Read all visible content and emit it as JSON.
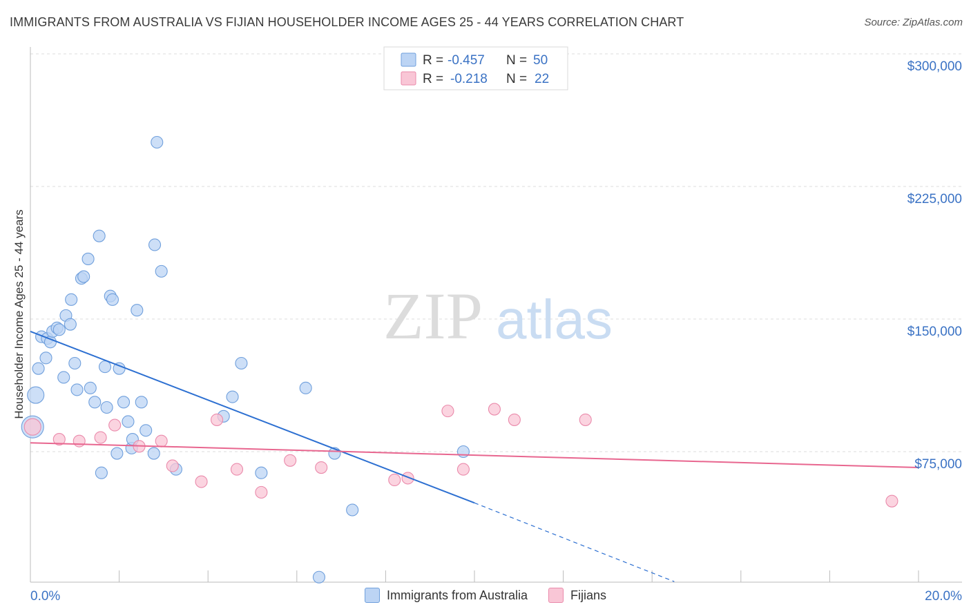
{
  "header": {
    "title": "IMMIGRANTS FROM AUSTRALIA VS FIJIAN HOUSEHOLDER INCOME AGES 25 - 44 YEARS CORRELATION CHART",
    "source": "Source: ZipAtlas.com"
  },
  "watermark": {
    "zip": "ZIP",
    "atlas": "atlas"
  },
  "colors": {
    "blue_fill": "#bcd4f4",
    "blue_stroke": "#6f9fdc",
    "blue_line": "#2c6fd1",
    "pink_fill": "#f9c6d6",
    "pink_stroke": "#ea8aab",
    "pink_line": "#e8668f",
    "axis_text": "#3a72c4"
  },
  "legend": {
    "rows": [
      {
        "r_label": "R =",
        "r_value": "-0.457",
        "n_label": "N =",
        "n_value": "50"
      },
      {
        "r_label": "R =",
        "r_value": "-0.218",
        "n_label": "N =",
        "n_value": "22"
      }
    ]
  },
  "bottom_legend": {
    "blue": "Immigrants from Australia",
    "pink": "Fijians"
  },
  "chart_data": {
    "type": "scatter",
    "title": "IMMIGRANTS FROM AUSTRALIA VS FIJIAN HOUSEHOLDER INCOME AGES 25 - 44 YEARS CORRELATION CHART",
    "xlabel": "",
    "ylabel": "Householder Income Ages 25 - 44 years",
    "xlim": [
      0,
      20
    ],
    "ylim": [
      0,
      310000
    ],
    "x_tick_labels": {
      "min": "0.0%",
      "max": "20.0%"
    },
    "y_ticks": [
      {
        "value": 75000,
        "label": "$75,000"
      },
      {
        "value": 150000,
        "label": "$150,000"
      },
      {
        "value": 225000,
        "label": "$225,000"
      },
      {
        "value": 300000,
        "label": "$300,000"
      }
    ],
    "series": [
      {
        "name": "Immigrants from Australia",
        "color": "blue",
        "r": -0.457,
        "n": 50,
        "trend": {
          "x0": 0.0,
          "y0": 143000,
          "x1": 10.0,
          "y1": 46000,
          "dash_to_x": 14.5,
          "dash_to_y": 1500
        },
        "points": [
          {
            "x": 0.05,
            "y": 89000,
            "s": 16
          },
          {
            "x": 0.12,
            "y": 107000,
            "s": 12
          },
          {
            "x": 0.18,
            "y": 122000
          },
          {
            "x": 0.25,
            "y": 140000
          },
          {
            "x": 0.35,
            "y": 128000
          },
          {
            "x": 0.38,
            "y": 139000
          },
          {
            "x": 0.45,
            "y": 137000
          },
          {
            "x": 0.5,
            "y": 143000
          },
          {
            "x": 0.6,
            "y": 145000
          },
          {
            "x": 0.65,
            "y": 144000
          },
          {
            "x": 0.75,
            "y": 117000
          },
          {
            "x": 0.8,
            "y": 152000
          },
          {
            "x": 0.9,
            "y": 147000
          },
          {
            "x": 0.92,
            "y": 161000
          },
          {
            "x": 1.0,
            "y": 125000
          },
          {
            "x": 1.05,
            "y": 110000
          },
          {
            "x": 1.15,
            "y": 173000
          },
          {
            "x": 1.2,
            "y": 174000
          },
          {
            "x": 1.3,
            "y": 184000
          },
          {
            "x": 1.35,
            "y": 111000
          },
          {
            "x": 1.45,
            "y": 103000
          },
          {
            "x": 1.55,
            "y": 197000
          },
          {
            "x": 1.6,
            "y": 63000
          },
          {
            "x": 1.68,
            "y": 123000
          },
          {
            "x": 1.72,
            "y": 100000
          },
          {
            "x": 1.8,
            "y": 163000
          },
          {
            "x": 1.85,
            "y": 161000
          },
          {
            "x": 1.95,
            "y": 74000
          },
          {
            "x": 2.0,
            "y": 122000
          },
          {
            "x": 2.1,
            "y": 103000
          },
          {
            "x": 2.2,
            "y": 92000
          },
          {
            "x": 2.28,
            "y": 77000
          },
          {
            "x": 2.3,
            "y": 82000
          },
          {
            "x": 2.4,
            "y": 155000
          },
          {
            "x": 2.5,
            "y": 103000
          },
          {
            "x": 2.6,
            "y": 87000
          },
          {
            "x": 2.8,
            "y": 192000
          },
          {
            "x": 2.85,
            "y": 250000
          },
          {
            "x": 2.95,
            "y": 177000
          },
          {
            "x": 2.78,
            "y": 74000
          },
          {
            "x": 3.28,
            "y": 65000
          },
          {
            "x": 4.35,
            "y": 95000
          },
          {
            "x": 4.55,
            "y": 106000
          },
          {
            "x": 4.75,
            "y": 125000
          },
          {
            "x": 5.2,
            "y": 63000
          },
          {
            "x": 6.2,
            "y": 111000
          },
          {
            "x": 6.5,
            "y": 4000
          },
          {
            "x": 6.85,
            "y": 74000
          },
          {
            "x": 7.25,
            "y": 42000
          },
          {
            "x": 9.75,
            "y": 75000
          }
        ]
      },
      {
        "name": "Fijians",
        "color": "pink",
        "r": -0.218,
        "n": 22,
        "trend": {
          "x0": 0.0,
          "y0": 80000,
          "x1": 20.0,
          "y1": 66000
        },
        "points": [
          {
            "x": 0.05,
            "y": 89000,
            "s": 12
          },
          {
            "x": 0.65,
            "y": 82000
          },
          {
            "x": 1.1,
            "y": 81000
          },
          {
            "x": 1.58,
            "y": 83000
          },
          {
            "x": 1.9,
            "y": 90000
          },
          {
            "x": 2.45,
            "y": 78000
          },
          {
            "x": 2.95,
            "y": 81000
          },
          {
            "x": 3.2,
            "y": 67000
          },
          {
            "x": 3.85,
            "y": 58000
          },
          {
            "x": 4.2,
            "y": 93000
          },
          {
            "x": 4.65,
            "y": 65000
          },
          {
            "x": 5.2,
            "y": 52000
          },
          {
            "x": 5.85,
            "y": 70000
          },
          {
            "x": 6.55,
            "y": 66000
          },
          {
            "x": 8.2,
            "y": 59000
          },
          {
            "x": 8.5,
            "y": 60000
          },
          {
            "x": 9.4,
            "y": 98000
          },
          {
            "x": 9.75,
            "y": 65000
          },
          {
            "x": 10.45,
            "y": 99000
          },
          {
            "x": 10.9,
            "y": 93000
          },
          {
            "x": 12.5,
            "y": 93000
          },
          {
            "x": 19.4,
            "y": 47000
          }
        ]
      }
    ]
  }
}
